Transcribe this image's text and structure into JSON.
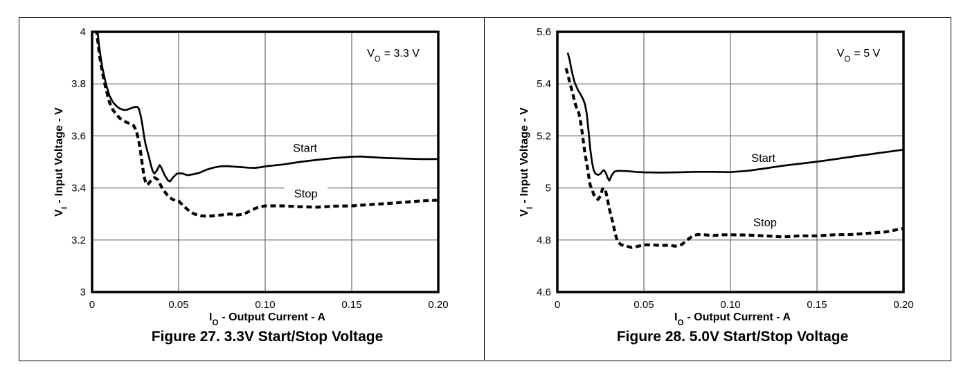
{
  "page": {
    "background_color": "#ffffff",
    "border_color": "#000000",
    "gridline_color": "#6b6b6b",
    "curve_color": "#000000"
  },
  "chart_data": [
    {
      "type": "line",
      "title": "Figure 27. 3.3V Start/Stop Voltage",
      "xlabel": {
        "base": "I",
        "sub": "O",
        "rest": "- Output Current - A"
      },
      "ylabel": {
        "base": "V",
        "sub": "I",
        "rest": "- Input Voltage - V"
      },
      "annotation": {
        "base": "V",
        "sub": "O",
        "rest": "= 3.3 V"
      },
      "xlim": [
        0,
        0.2
      ],
      "ylim": [
        3.0,
        4.0
      ],
      "grid": true,
      "x_ticks": [
        {
          "value": 0,
          "label": "0"
        },
        {
          "value": 0.05,
          "label": "0.05"
        },
        {
          "value": 0.1,
          "label": "0.10"
        },
        {
          "value": 0.15,
          "label": "0.15"
        },
        {
          "value": 0.2,
          "label": "0.20"
        }
      ],
      "y_ticks": [
        {
          "value": 4.0,
          "label": "4"
        },
        {
          "value": 3.8,
          "label": "3.8"
        },
        {
          "value": 3.6,
          "label": "3.6"
        },
        {
          "value": 3.4,
          "label": "3.4"
        },
        {
          "value": 3.2,
          "label": "3.2"
        },
        {
          "value": 3.0,
          "label": "3"
        }
      ],
      "series": [
        {
          "name": "Start",
          "line_style": "solid",
          "label_pos": {
            "x": 0.123,
            "y": 3.553
          },
          "points": [
            [
              0.003,
              4.01
            ],
            [
              0.004,
              3.95
            ],
            [
              0.005,
              3.9
            ],
            [
              0.006,
              3.86
            ],
            [
              0.007,
              3.83
            ],
            [
              0.008,
              3.8
            ],
            [
              0.01,
              3.755
            ],
            [
              0.012,
              3.73
            ],
            [
              0.014,
              3.715
            ],
            [
              0.016,
              3.705
            ],
            [
              0.018,
              3.7
            ],
            [
              0.02,
              3.7
            ],
            [
              0.022,
              3.705
            ],
            [
              0.024,
              3.71
            ],
            [
              0.026,
              3.712
            ],
            [
              0.027,
              3.705
            ],
            [
              0.028,
              3.68
            ],
            [
              0.029,
              3.645
            ],
            [
              0.03,
              3.6
            ],
            [
              0.031,
              3.565
            ],
            [
              0.032,
              3.54
            ],
            [
              0.033,
              3.515
            ],
            [
              0.034,
              3.487
            ],
            [
              0.035,
              3.465
            ],
            [
              0.036,
              3.455
            ],
            [
              0.0375,
              3.468
            ],
            [
              0.039,
              3.488
            ],
            [
              0.04,
              3.478
            ],
            [
              0.042,
              3.448
            ],
            [
              0.044,
              3.428
            ],
            [
              0.045,
              3.425
            ],
            [
              0.047,
              3.442
            ],
            [
              0.049,
              3.455
            ],
            [
              0.052,
              3.456
            ],
            [
              0.055,
              3.449
            ],
            [
              0.058,
              3.452
            ],
            [
              0.062,
              3.458
            ],
            [
              0.066,
              3.47
            ],
            [
              0.07,
              3.478
            ],
            [
              0.074,
              3.483
            ],
            [
              0.078,
              3.484
            ],
            [
              0.082,
              3.482
            ],
            [
              0.086,
              3.48
            ],
            [
              0.09,
              3.478
            ],
            [
              0.094,
              3.477
            ],
            [
              0.098,
              3.48
            ],
            [
              0.1,
              3.483
            ],
            [
              0.11,
              3.49
            ],
            [
              0.12,
              3.5
            ],
            [
              0.13,
              3.508
            ],
            [
              0.14,
              3.515
            ],
            [
              0.15,
              3.52
            ],
            [
              0.155,
              3.521
            ],
            [
              0.16,
              3.519
            ],
            [
              0.17,
              3.515
            ],
            [
              0.18,
              3.513
            ],
            [
              0.19,
              3.511
            ],
            [
              0.2,
              3.511
            ]
          ]
        },
        {
          "name": "Stop",
          "line_style": "dashed",
          "label_pos": {
            "x": 0.1235,
            "y": 3.378
          },
          "points": [
            [
              0.0025,
              4.01
            ],
            [
              0.0035,
              3.95
            ],
            [
              0.0045,
              3.9
            ],
            [
              0.0055,
              3.86
            ],
            [
              0.0065,
              3.825
            ],
            [
              0.0075,
              3.795
            ],
            [
              0.009,
              3.755
            ],
            [
              0.01,
              3.73
            ],
            [
              0.012,
              3.7
            ],
            [
              0.014,
              3.683
            ],
            [
              0.016,
              3.668
            ],
            [
              0.018,
              3.658
            ],
            [
              0.02,
              3.652
            ],
            [
              0.022,
              3.647
            ],
            [
              0.024,
              3.64
            ],
            [
              0.0255,
              3.62
            ],
            [
              0.027,
              3.58
            ],
            [
              0.028,
              3.54
            ],
            [
              0.029,
              3.49
            ],
            [
              0.03,
              3.445
            ],
            [
              0.031,
              3.42
            ],
            [
              0.032,
              3.412
            ],
            [
              0.034,
              3.428
            ],
            [
              0.036,
              3.44
            ],
            [
              0.038,
              3.432
            ],
            [
              0.04,
              3.405
            ],
            [
              0.042,
              3.385
            ],
            [
              0.044,
              3.368
            ],
            [
              0.046,
              3.358
            ],
            [
              0.048,
              3.352
            ],
            [
              0.05,
              3.35
            ],
            [
              0.053,
              3.33
            ],
            [
              0.056,
              3.312
            ],
            [
              0.059,
              3.3
            ],
            [
              0.063,
              3.293
            ],
            [
              0.067,
              3.291
            ],
            [
              0.071,
              3.294
            ],
            [
              0.076,
              3.297
            ],
            [
              0.08,
              3.3
            ],
            [
              0.084,
              3.296
            ],
            [
              0.088,
              3.3
            ],
            [
              0.092,
              3.315
            ],
            [
              0.096,
              3.326
            ],
            [
              0.1,
              3.331
            ],
            [
              0.11,
              3.331
            ],
            [
              0.12,
              3.328
            ],
            [
              0.13,
              3.326
            ],
            [
              0.14,
              3.33
            ],
            [
              0.15,
              3.331
            ],
            [
              0.16,
              3.336
            ],
            [
              0.17,
              3.34
            ],
            [
              0.18,
              3.345
            ],
            [
              0.19,
              3.35
            ],
            [
              0.2,
              3.353
            ]
          ]
        }
      ]
    },
    {
      "type": "line",
      "title": "Figure 28. 5.0V Start/Stop Voltage",
      "xlabel": {
        "base": "I",
        "sub": "O",
        "rest": "- Output Current - A"
      },
      "ylabel": {
        "base": "V",
        "sub": "I",
        "rest": "- Input Voltage - V"
      },
      "annotation": {
        "base": "V",
        "sub": "O",
        "rest": "= 5 V"
      },
      "xlim": [
        0,
        0.2
      ],
      "ylim": [
        4.6,
        5.6
      ],
      "grid": true,
      "x_ticks": [
        {
          "value": 0,
          "label": "0"
        },
        {
          "value": 0.05,
          "label": "0.05"
        },
        {
          "value": 0.1,
          "label": "0.10"
        },
        {
          "value": 0.15,
          "label": "0.15"
        },
        {
          "value": 0.2,
          "label": "0.20"
        }
      ],
      "y_ticks": [
        {
          "value": 5.6,
          "label": "5.6"
        },
        {
          "value": 5.4,
          "label": "5.4"
        },
        {
          "value": 5.2,
          "label": "5.2"
        },
        {
          "value": 5.0,
          "label": "5"
        },
        {
          "value": 4.8,
          "label": "4.8"
        },
        {
          "value": 4.6,
          "label": "4.6"
        }
      ],
      "series": [
        {
          "name": "Start",
          "line_style": "solid",
          "label_pos": {
            "x": 0.119,
            "y": 5.115
          },
          "points": [
            [
              0.006,
              5.52
            ],
            [
              0.007,
              5.495
            ],
            [
              0.008,
              5.46
            ],
            [
              0.009,
              5.43
            ],
            [
              0.01,
              5.405
            ],
            [
              0.011,
              5.39
            ],
            [
              0.012,
              5.375
            ],
            [
              0.013,
              5.365
            ],
            [
              0.014,
              5.352
            ],
            [
              0.015,
              5.34
            ],
            [
              0.016,
              5.32
            ],
            [
              0.017,
              5.285
            ],
            [
              0.018,
              5.22
            ],
            [
              0.019,
              5.15
            ],
            [
              0.02,
              5.1
            ],
            [
              0.021,
              5.068
            ],
            [
              0.022,
              5.055
            ],
            [
              0.0235,
              5.05
            ],
            [
              0.025,
              5.055
            ],
            [
              0.026,
              5.065
            ],
            [
              0.027,
              5.068
            ],
            [
              0.028,
              5.058
            ],
            [
              0.029,
              5.04
            ],
            [
              0.03,
              5.028
            ],
            [
              0.0315,
              5.05
            ],
            [
              0.033,
              5.063
            ],
            [
              0.035,
              5.066
            ],
            [
              0.04,
              5.065
            ],
            [
              0.045,
              5.062
            ],
            [
              0.05,
              5.06
            ],
            [
              0.06,
              5.059
            ],
            [
              0.07,
              5.06
            ],
            [
              0.08,
              5.062
            ],
            [
              0.09,
              5.062
            ],
            [
              0.1,
              5.061
            ],
            [
              0.11,
              5.066
            ],
            [
              0.12,
              5.075
            ],
            [
              0.13,
              5.085
            ],
            [
              0.14,
              5.093
            ],
            [
              0.15,
              5.101
            ],
            [
              0.16,
              5.11
            ],
            [
              0.17,
              5.12
            ],
            [
              0.18,
              5.129
            ],
            [
              0.19,
              5.138
            ],
            [
              0.2,
              5.147
            ]
          ]
        },
        {
          "name": "Stop",
          "line_style": "dashed",
          "label_pos": {
            "x": 0.12,
            "y": 4.867
          },
          "points": [
            [
              0.005,
              5.46
            ],
            [
              0.006,
              5.437
            ],
            [
              0.007,
              5.41
            ],
            [
              0.008,
              5.385
            ],
            [
              0.009,
              5.36
            ],
            [
              0.01,
              5.33
            ],
            [
              0.011,
              5.31
            ],
            [
              0.012,
              5.3
            ],
            [
              0.013,
              5.27
            ],
            [
              0.014,
              5.23
            ],
            [
              0.015,
              5.18
            ],
            [
              0.016,
              5.13
            ],
            [
              0.017,
              5.095
            ],
            [
              0.018,
              5.05
            ],
            [
              0.019,
              5.01
            ],
            [
              0.02,
              4.995
            ],
            [
              0.021,
              4.975
            ],
            [
              0.022,
              4.963
            ],
            [
              0.0235,
              4.956
            ],
            [
              0.025,
              4.97
            ],
            [
              0.026,
              4.995
            ],
            [
              0.027,
              5.0
            ],
            [
              0.028,
              4.985
            ],
            [
              0.029,
              4.955
            ],
            [
              0.03,
              4.92
            ],
            [
              0.031,
              4.895
            ],
            [
              0.032,
              4.868
            ],
            [
              0.033,
              4.838
            ],
            [
              0.034,
              4.81
            ],
            [
              0.035,
              4.792
            ],
            [
              0.037,
              4.781
            ],
            [
              0.04,
              4.776
            ],
            [
              0.043,
              4.771
            ],
            [
              0.046,
              4.775
            ],
            [
              0.05,
              4.781
            ],
            [
              0.055,
              4.781
            ],
            [
              0.06,
              4.779
            ],
            [
              0.065,
              4.78
            ],
            [
              0.068,
              4.776
            ],
            [
              0.072,
              4.783
            ],
            [
              0.075,
              4.8
            ],
            [
              0.078,
              4.815
            ],
            [
              0.081,
              4.821
            ],
            [
              0.085,
              4.82
            ],
            [
              0.09,
              4.817
            ],
            [
              0.095,
              4.82
            ],
            [
              0.1,
              4.82
            ],
            [
              0.11,
              4.819
            ],
            [
              0.12,
              4.816
            ],
            [
              0.13,
              4.812
            ],
            [
              0.14,
              4.816
            ],
            [
              0.15,
              4.816
            ],
            [
              0.16,
              4.82
            ],
            [
              0.17,
              4.821
            ],
            [
              0.18,
              4.826
            ],
            [
              0.19,
              4.831
            ],
            [
              0.2,
              4.845
            ]
          ]
        }
      ]
    }
  ]
}
